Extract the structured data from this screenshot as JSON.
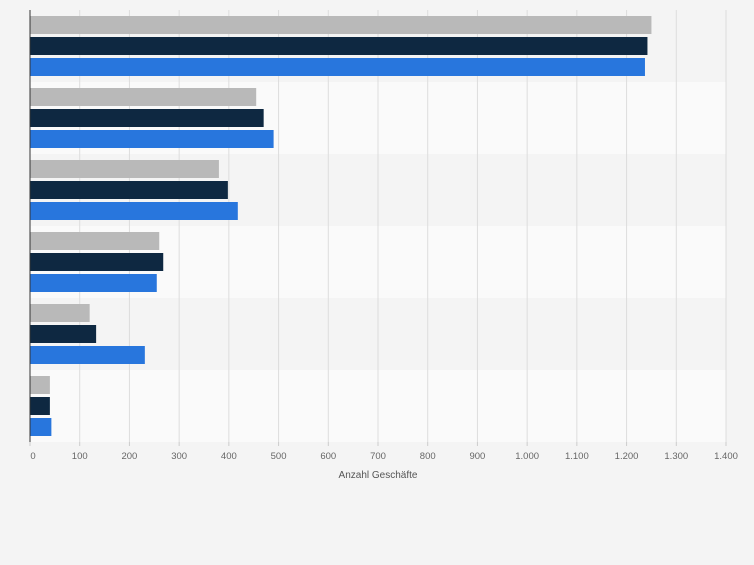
{
  "chart_data": {
    "type": "bar",
    "orientation": "horizontal",
    "categories": [
      "",
      "",
      "",
      "",
      "",
      ""
    ],
    "series": [
      {
        "values": [
          1250,
          455,
          380,
          260,
          120,
          40
        ]
      },
      {
        "values": [
          1242,
          470,
          398,
          268,
          133,
          40
        ]
      },
      {
        "values": [
          1237,
          490,
          418,
          255,
          231,
          43
        ]
      }
    ],
    "xlim": [
      0,
      1400
    ],
    "x_ticks": [
      0,
      100,
      200,
      300,
      400,
      500,
      600,
      700,
      800,
      900,
      1000,
      1100,
      1200,
      1300,
      1400
    ],
    "x_tick_labels": [
      "0",
      "100",
      "200",
      "300",
      "400",
      "500",
      "600",
      "700",
      "800",
      "900",
      "1.000",
      "1.100",
      "1.200",
      "1.300",
      "1.400"
    ],
    "xlabel": "Anzahl Geschäfte",
    "grid": true,
    "legend": "none"
  },
  "colors": {
    "series": [
      "#b9b9b9",
      "#0e2841",
      "#2876dd"
    ],
    "band_dark": "#f4f4f4",
    "band_light": "#fafafa",
    "grid": "#dddddd",
    "axis": "#333333",
    "tick_text": "#666666"
  }
}
